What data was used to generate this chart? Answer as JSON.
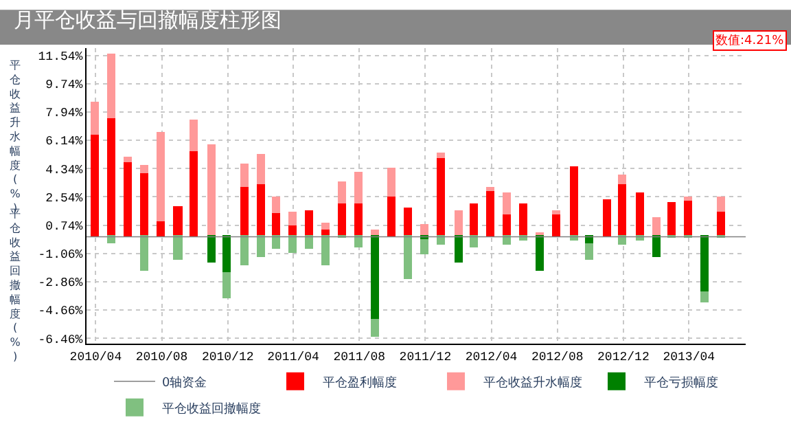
{
  "chart_data": {
    "type": "bar",
    "stacked": true,
    "title": "月平仓收益与回撤幅度柱形图",
    "ylabel": "平仓收益升水幅度(%)",
    "annotations": [
      "平仓收益回撤幅度(%)",
      "数值:4.21%"
    ],
    "x": [
      "2010-04",
      "2010-05",
      "2010-06",
      "2010-07",
      "2010-08",
      "2010-09",
      "2010-10",
      "2010-11",
      "2010-12",
      "2011-01",
      "2011-02",
      "2011-03",
      "2011-04",
      "2011-05",
      "2011-06",
      "2011-07",
      "2011-08",
      "2011-09",
      "2011-10",
      "2011-11",
      "2011-12",
      "2012-01",
      "2012-02",
      "2012-03",
      "2012-04",
      "2012-05",
      "2012-06",
      "2012-07",
      "2012-08",
      "2012-09",
      "2012-10",
      "2012-11",
      "2012-12",
      "2013-01",
      "2013-02",
      "2013-03",
      "2013-04",
      "2013-05",
      "2013-06"
    ],
    "series": [
      {
        "name": "平仓盈利幅度",
        "color": "#ff0000",
        "values": [
          6.5,
          7.5,
          4.7,
          4.0,
          1.0,
          1.9,
          5.4,
          null,
          null,
          3.2,
          3.3,
          1.5,
          0.7,
          1.6,
          0.5,
          2.1,
          2.1,
          null,
          2.6,
          1.8,
          null,
          5.0,
          null,
          2.0,
          2.9,
          1.4,
          2.0,
          null,
          1.4,
          4.4,
          null,
          2.3,
          3.3,
          2.7,
          null,
          2.1,
          2.3,
          null,
          1.6
        ]
      },
      {
        "name": "平仓收益升水幅度",
        "color": "#ff9999",
        "values": [
          2.0,
          4.1,
          0.3,
          0.5,
          5.6,
          null,
          2.0,
          5.8,
          null,
          1.4,
          1.9,
          1.0,
          0.8,
          null,
          0.3,
          1.3,
          1.9,
          0.4,
          1.7,
          null,
          0.7,
          0.3,
          1.6,
          null,
          0.2,
          1.3,
          null,
          0.2,
          0.2,
          null,
          null,
          null,
          0.6,
          null,
          1.2,
          null,
          0.2,
          null,
          0.9
        ]
      },
      {
        "name": "平仓亏损幅度",
        "color": "#008000",
        "values": [
          null,
          null,
          null,
          null,
          null,
          null,
          null,
          -1.6,
          -2.3,
          null,
          null,
          null,
          null,
          null,
          null,
          null,
          null,
          -5.3,
          null,
          null,
          -0.2,
          null,
          -1.6,
          null,
          null,
          null,
          null,
          -2.2,
          null,
          null,
          -0.5,
          null,
          null,
          null,
          -1.3,
          null,
          null,
          -3.6,
          null
        ]
      },
      {
        "name": "平仓收益回撤幅度",
        "color": "#80c080",
        "values": [
          null,
          -0.4,
          null,
          -2.2,
          null,
          -1.5,
          null,
          null,
          -1.6,
          -1.8,
          -1.3,
          -0.8,
          -1.0,
          -0.8,
          -1.8,
          -0.1,
          -0.7,
          -1.1,
          null,
          -2.7,
          -0.9,
          -0.5,
          null,
          -0.7,
          null,
          -0.5,
          -0.2,
          null,
          null,
          -0.2,
          -1.0,
          null,
          -0.5,
          -0.2,
          null,
          -0.1,
          -0.1,
          -0.6,
          -0.1
        ]
      }
    ],
    "ref_lines": [
      {
        "axis": "y",
        "value": 0,
        "label": "0轴资金",
        "color": "#808080"
      }
    ],
    "xlim": [
      "2010-03-15",
      "2013-07-15"
    ],
    "xticks": [
      {
        "value": "2010-04",
        "label": "2010/04"
      },
      {
        "value": "2010-08",
        "label": "2010/08"
      },
      {
        "value": "2010-12",
        "label": "2010/12"
      },
      {
        "value": "2011-04",
        "label": "2011/04"
      },
      {
        "value": "2011-08",
        "label": "2011/08"
      },
      {
        "value": "2011-12",
        "label": "2011/12"
      },
      {
        "value": "2012-04",
        "label": "2012/04"
      },
      {
        "value": "2012-08",
        "label": "2012/08"
      },
      {
        "value": "2012-12",
        "label": "2012/12"
      },
      {
        "value": "2013-04",
        "label": "2013/04"
      }
    ],
    "ylim": [
      -6.8,
      12.0
    ],
    "yticks": [
      {
        "value": -6.46,
        "label": "-6.46%"
      },
      {
        "value": -4.66,
        "label": "-4.66%"
      },
      {
        "value": -2.86,
        "label": "-2.86%"
      },
      {
        "value": -1.06,
        "label": "-1.06%"
      },
      {
        "value": 0.74,
        "label": "0.74%"
      },
      {
        "value": 2.54,
        "label": "2.54%"
      },
      {
        "value": 4.34,
        "label": "4.34%"
      },
      {
        "value": 6.14,
        "label": "6.14%"
      },
      {
        "value": 7.94,
        "label": "7.94%"
      },
      {
        "value": 9.74,
        "label": "9.74%"
      },
      {
        "value": 11.54,
        "label": "11.54%"
      }
    ],
    "grid": true,
    "legend": "bottom"
  }
}
